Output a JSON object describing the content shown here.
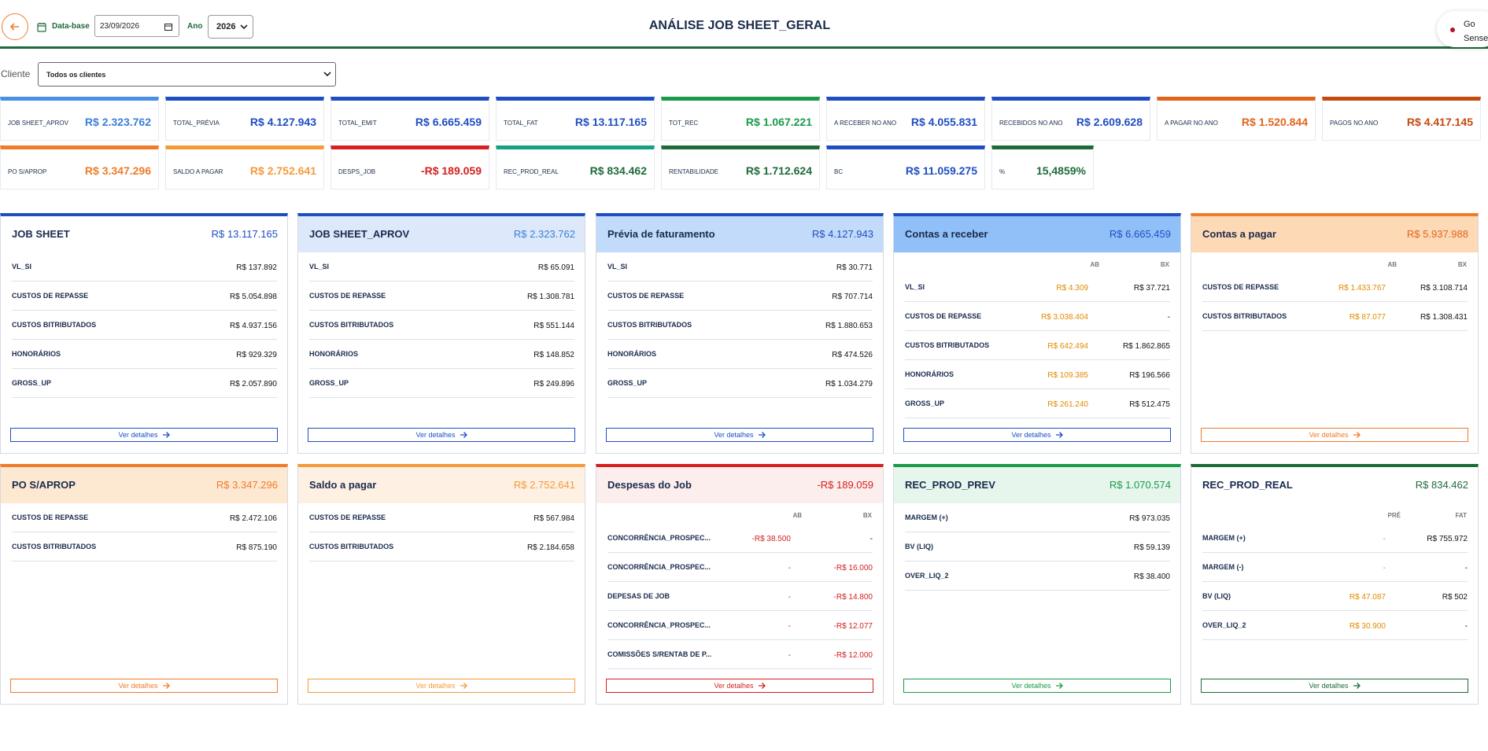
{
  "header": {
    "title": "ANÁLISE JOB SHEET_GERAL",
    "date_label": "Data-base",
    "date_value": "23/09/2026",
    "year_label": "Ano",
    "year_value": "2026",
    "user_name": "Go Sense",
    "user_name_line1": "Go",
    "user_name_line2": "Sense"
  },
  "filter": {
    "client_label": "Cliente",
    "client_value": "Todos os clientes"
  },
  "kpis": [
    {
      "label": "JOB SHEET_APROV",
      "value": "R$ 2.323.762",
      "accent": "#4a90e2",
      "value_color": "#3a7fd9"
    },
    {
      "label": "TOTAL_PRÉVIA",
      "value": "R$ 4.127.943",
      "accent": "#1f4ec2",
      "value_color": "#1f4ec2"
    },
    {
      "label": "TOTAL_EMIT",
      "value": "R$ 6.665.459",
      "accent": "#1f4ec2",
      "value_color": "#1f4ec2"
    },
    {
      "label": "TOTAL_FAT",
      "value": "R$ 13.117.165",
      "accent": "#1f4ec2",
      "value_color": "#1f4ec2"
    },
    {
      "label": "TOT_REC",
      "value": "R$ 1.067.221",
      "accent": "#1a9a4a",
      "value_color": "#1a9a4a"
    },
    {
      "label": "A RECEBER NO ANO",
      "value": "R$ 4.055.831",
      "accent": "#1f4ec2",
      "value_color": "#1f4ec2"
    },
    {
      "label": "RECEBIDOS NO ANO",
      "value": "R$ 2.609.628",
      "accent": "#1f4ec2",
      "value_color": "#1f4ec2"
    },
    {
      "label": "A PAGAR NO ANO",
      "value": "R$ 1.520.844",
      "accent": "#e0651b",
      "value_color": "#e0651b"
    },
    {
      "label": "PAGOS NO ANO",
      "value": "R$ 4.417.145",
      "accent": "#c44a10",
      "value_color": "#c44a10"
    },
    {
      "label": "PO S/APROP",
      "value": "R$ 3.347.296",
      "accent": "#f07b2a",
      "value_color": "#f07b2a"
    },
    {
      "label": "SALDO A PAGAR",
      "value": "R$ 2.752.641",
      "accent": "#f59a3a",
      "value_color": "#f59a3a"
    },
    {
      "label": "DESPS_JOB",
      "value": "-R$ 189.059",
      "accent": "#d42020",
      "value_color": "#d42020"
    },
    {
      "label": "REC_PROD_REAL",
      "value": "R$ 834.462",
      "accent": "#16a085",
      "value_color": "#1e6b3a"
    },
    {
      "label": "RENTABILIDADE",
      "value": "R$ 1.712.624",
      "accent": "#1e6b3a",
      "value_color": "#1e6b3a"
    },
    {
      "label": "BC",
      "value": "R$ 11.059.275",
      "accent": "#1f4ec2",
      "value_color": "#1f4ec2"
    },
    {
      "label": "%",
      "value": "15,4859%",
      "accent": "#1e6b3a",
      "value_color": "#1e6b3a"
    }
  ],
  "panels": [
    {
      "title": "JOB SHEET",
      "value": "R$ 13.117.165",
      "accent": "#1f4ec2",
      "header_bg": "#ffffff",
      "value_color": "#1f4ec2",
      "button": "Ver detalhes",
      "button_color": "#1f4ec2",
      "cols": [],
      "rows": [
        {
          "label": "VL_SI",
          "value": "R$ 137.892"
        },
        {
          "label": "CUSTOS DE REPASSE",
          "value": "R$ 5.054.898"
        },
        {
          "label": "CUSTOS BITRIBUTADOS",
          "value": "R$ 4.937.156"
        },
        {
          "label": "HONORÁRIOS",
          "value": "R$ 929.329"
        },
        {
          "label": "GROSS_UP",
          "value": "R$ 2.057.890"
        }
      ]
    },
    {
      "title": "JOB SHEET_APROV",
      "value": "R$ 2.323.762",
      "accent": "#1f4ec2",
      "header_bg": "#dde8fb",
      "value_color": "#3a7fd9",
      "button": "Ver detalhes",
      "button_color": "#1f4ec2",
      "cols": [],
      "rows": [
        {
          "label": "VL_SI",
          "value": "R$ 65.091"
        },
        {
          "label": "CUSTOS DE REPASSE",
          "value": "R$ 1.308.781"
        },
        {
          "label": "CUSTOS BITRIBUTADOS",
          "value": "R$ 551.144"
        },
        {
          "label": "HONORÁRIOS",
          "value": "R$ 148.852"
        },
        {
          "label": "GROSS_UP",
          "value": "R$ 249.896"
        }
      ]
    },
    {
      "title": "Prévia de faturamento",
      "value": "R$ 4.127.943",
      "accent": "#1f4ec2",
      "header_bg": "#c3dbfa",
      "value_color": "#1f4ec2",
      "button": "Ver detalhes",
      "button_color": "#1f4ec2",
      "cols": [],
      "rows": [
        {
          "label": "VL_SI",
          "value": "R$ 30.771"
        },
        {
          "label": "CUSTOS DE REPASSE",
          "value": "R$ 707.714"
        },
        {
          "label": "CUSTOS BITRIBUTADOS",
          "value": "R$ 1.880.653"
        },
        {
          "label": "HONORÁRIOS",
          "value": "R$ 474.526"
        },
        {
          "label": "GROSS_UP",
          "value": "R$ 1.034.279"
        }
      ]
    },
    {
      "title": "Contas a receber",
      "value": "R$ 6.665.459",
      "accent": "#1f4ec2",
      "header_bg": "#90c0f7",
      "value_color": "#1f4ec2",
      "button": "Ver detalhes",
      "button_color": "#1f4ec2",
      "cols": [
        "AB",
        "BX"
      ],
      "rows": [
        {
          "label": "VL_SI",
          "a": "R$ 4.309",
          "value": "R$ 37.721"
        },
        {
          "label": "CUSTOS DE REPASSE",
          "a": "R$ 3.038.404",
          "value": "-"
        },
        {
          "label": "CUSTOS BITRIBUTADOS",
          "a": "R$ 642.494",
          "value": "R$ 1.862.865"
        },
        {
          "label": "HONORÁRIOS",
          "a": "R$ 109.385",
          "value": "R$ 196.566"
        },
        {
          "label": "GROSS_UP",
          "a": "R$ 261.240",
          "value": "R$ 512.475"
        }
      ]
    },
    {
      "title": "Contas a pagar",
      "value": "R$ 5.937.988",
      "accent": "#f07b2a",
      "header_bg": "#fdd9b5",
      "value_color": "#e0651b",
      "button": "Ver detalhes",
      "button_color": "#f07b2a",
      "cols": [
        "AB",
        "BX"
      ],
      "rows": [
        {
          "label": "CUSTOS DE REPASSE",
          "a": "R$ 1.433.767",
          "value": "R$ 3.108.714"
        },
        {
          "label": "CUSTOS BITRIBUTADOS",
          "a": "R$ 87.077",
          "value": "R$ 1.308.431"
        }
      ]
    },
    {
      "title": "PO S/APROP",
      "value": "R$ 3.347.296",
      "accent": "#f07b2a",
      "header_bg": "#fde8d2",
      "value_color": "#f07b2a",
      "button": "Ver detalhes",
      "button_color": "#f07b2a",
      "cols": [],
      "rows": [
        {
          "label": "CUSTOS DE REPASSE",
          "value": "R$ 2.472.106"
        },
        {
          "label": "CUSTOS BITRIBUTADOS",
          "value": "R$ 875.190"
        }
      ]
    },
    {
      "title": "Saldo a pagar",
      "value": "R$ 2.752.641",
      "accent": "#f59a3a",
      "header_bg": "#fef1e3",
      "value_color": "#f59a3a",
      "button": "Ver detalhes",
      "button_color": "#f59a3a",
      "cols": [],
      "rows": [
        {
          "label": "CUSTOS DE REPASSE",
          "value": "R$ 567.984"
        },
        {
          "label": "CUSTOS BITRIBUTADOS",
          "value": "R$ 2.184.658"
        }
      ]
    },
    {
      "title": "Despesas do Job",
      "value": "-R$ 189.059",
      "accent": "#d42020",
      "header_bg": "#fdeeee",
      "value_color": "#d42020",
      "button": "Ver detalhes",
      "button_color": "#d42020",
      "cols": [
        "AB",
        "BX"
      ],
      "rows": [
        {
          "label": "CONCORRÊNCIA_PROSPEC...",
          "a": "-R$ 38.500",
          "value": "-"
        },
        {
          "label": "CONCORRÊNCIA_PROSPEC...",
          "a": "-",
          "value": "-R$ 16.000"
        },
        {
          "label": "DEPESAS DE JOB",
          "a": "-",
          "value": "-R$ 14.800"
        },
        {
          "label": "CONCORRÊNCIA_PROSPEC...",
          "a": "-",
          "value": "-R$ 12.077"
        },
        {
          "label": "COMISSÕES S/RENTAB DE P...",
          "a": "-",
          "value": "-R$ 12.000"
        }
      ]
    },
    {
      "title": "REC_PROD_PREV",
      "value": "R$ 1.070.574",
      "accent": "#1a9a4a",
      "header_bg": "#e6f6ec",
      "value_color": "#1a9a4a",
      "button": "Ver detalhes",
      "button_color": "#1a9a4a",
      "cols": [],
      "rows": [
        {
          "label": "MARGEM (+)",
          "value": "R$ 973.035"
        },
        {
          "label": "BV (LIQ)",
          "value": "R$ 59.139"
        },
        {
          "label": "OVER_LIQ_2",
          "value": "R$ 38.400"
        }
      ]
    },
    {
      "title": "REC_PROD_REAL",
      "value": "R$ 834.462",
      "accent": "#1e6b3a",
      "header_bg": "#ffffff",
      "value_color": "#1e6b3a",
      "button": "Ver detalhes",
      "button_color": "#1e6b3a",
      "cols": [
        "PRÉ",
        "FAT"
      ],
      "rows": [
        {
          "label": "MARGEM (+)",
          "a": "-",
          "value": "R$ 755.972"
        },
        {
          "label": "MARGEM (-)",
          "a": "-",
          "value": "-"
        },
        {
          "label": "BV (LIQ)",
          "a": "R$ 47.087",
          "value": "R$ 502"
        },
        {
          "label": "OVER_LIQ_2",
          "a": "R$ 30.900",
          "value": "-"
        }
      ]
    }
  ],
  "colors": {
    "green": "#1e6b3a",
    "orange": "#f07b2a",
    "blue": "#1f4ec2",
    "red": "#d42020",
    "amber": "#e08a00"
  }
}
